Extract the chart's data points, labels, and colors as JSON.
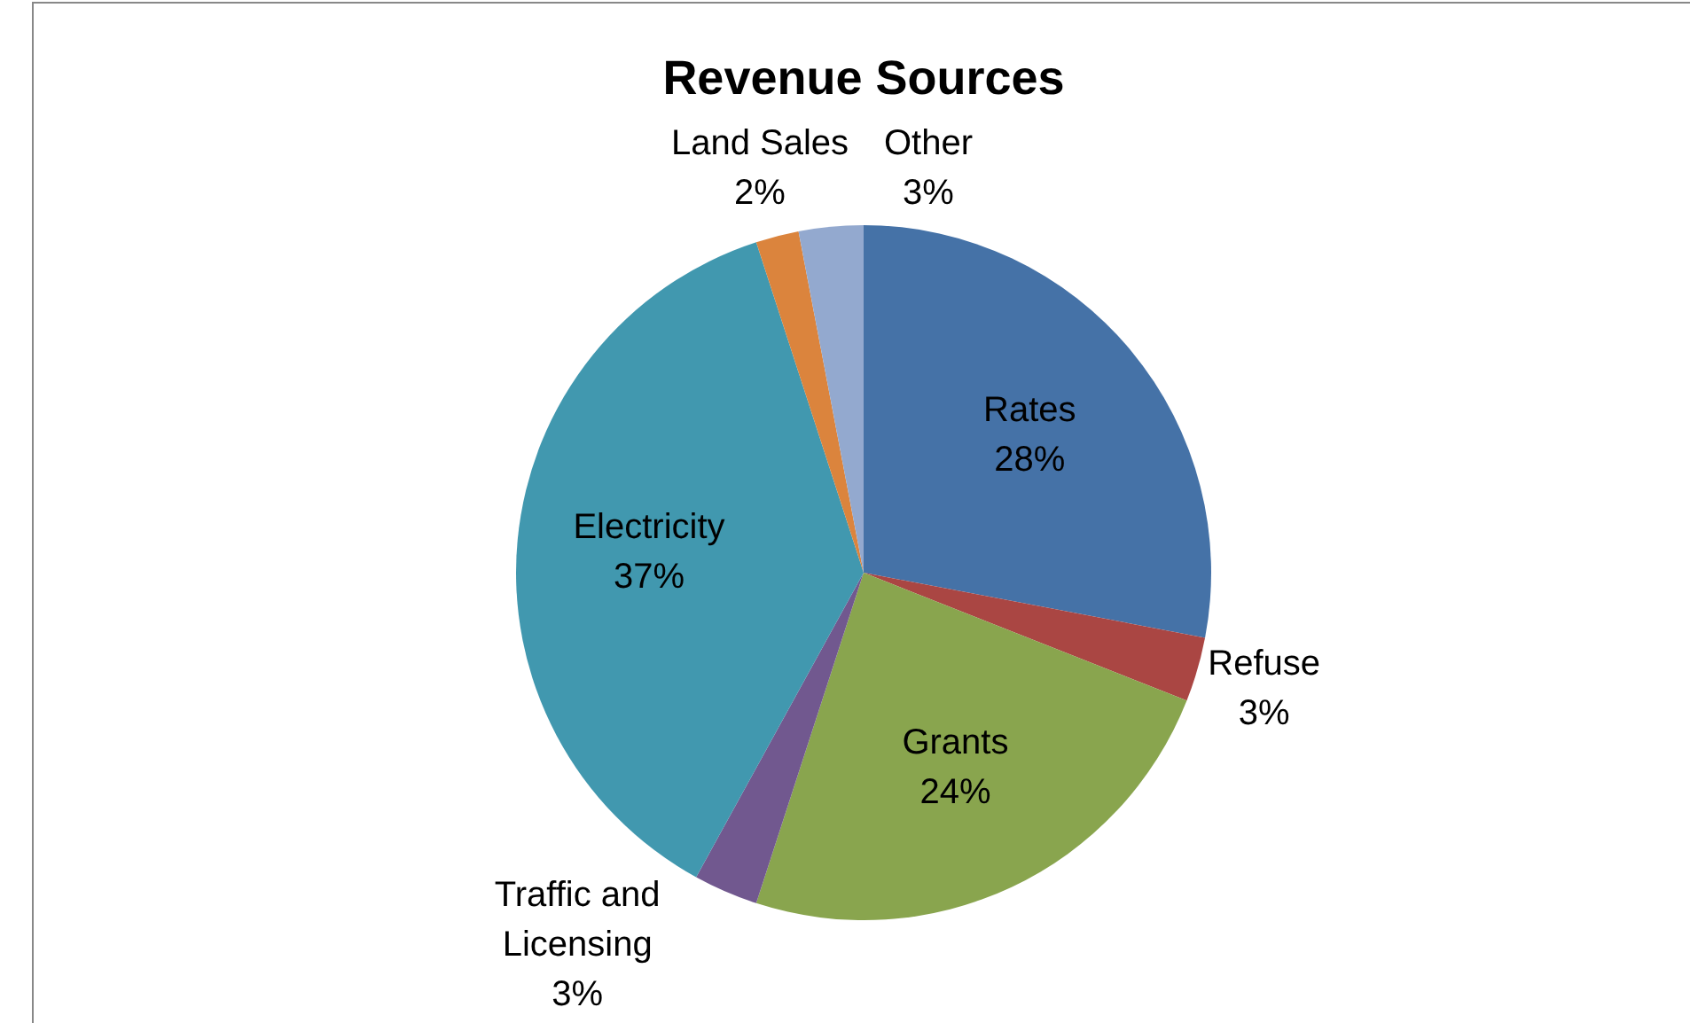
{
  "chart_data": {
    "type": "pie",
    "title": "Revenue Sources",
    "categories": [
      "Rates",
      "Refuse",
      "Grants",
      "Traffic and Licensing",
      "Electricity",
      "Land Sales",
      "Other"
    ],
    "values": [
      28,
      3,
      24,
      3,
      37,
      2,
      3
    ],
    "value_labels": [
      "28%",
      "3%",
      "24%",
      "3%",
      "37%",
      "2%",
      "3%"
    ],
    "colors": [
      "#4572a7",
      "#aa4643",
      "#89a54e",
      "#71588f",
      "#4198af",
      "#db843d",
      "#93a9cf"
    ]
  }
}
